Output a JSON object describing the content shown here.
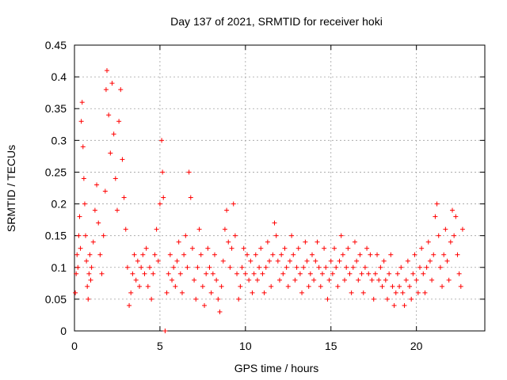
{
  "chart_data": {
    "type": "scatter",
    "title": "Day 137 of 2021, SRMTID for receiver hoki",
    "xlabel": "GPS time / hours",
    "ylabel": "SRMTID / TECUs",
    "xlim": [
      0,
      24
    ],
    "ylim": [
      0,
      0.45
    ],
    "xticks": [
      0,
      5,
      10,
      15,
      20
    ],
    "xtick_labels": [
      "0",
      "5",
      "10",
      "15",
      "20"
    ],
    "yticks": [
      0,
      0.05,
      0.1,
      0.15,
      0.2,
      0.25,
      0.3,
      0.35,
      0.4,
      0.45
    ],
    "ytick_labels": [
      "0",
      "0.05",
      "0.1",
      "0.15",
      "0.2",
      "0.25",
      "0.3",
      "0.35",
      "0.4",
      "0.45"
    ],
    "grid": true,
    "marker": "+",
    "color": "#ff0000",
    "series": [
      {
        "name": "SRMTID",
        "points": [
          [
            0.05,
            0.06
          ],
          [
            0.1,
            0.09
          ],
          [
            0.15,
            0.12
          ],
          [
            0.2,
            0.1
          ],
          [
            0.25,
            0.15
          ],
          [
            0.3,
            0.18
          ],
          [
            0.35,
            0.13
          ],
          [
            0.4,
            0.33
          ],
          [
            0.45,
            0.36
          ],
          [
            0.5,
            0.29
          ],
          [
            0.55,
            0.24
          ],
          [
            0.6,
            0.2
          ],
          [
            0.65,
            0.15
          ],
          [
            0.7,
            0.11
          ],
          [
            0.75,
            0.07
          ],
          [
            0.8,
            0.05
          ],
          [
            0.85,
            0.09
          ],
          [
            0.9,
            0.12
          ],
          [
            0.95,
            0.08
          ],
          [
            1.0,
            0.1
          ],
          [
            1.1,
            0.14
          ],
          [
            1.2,
            0.19
          ],
          [
            1.3,
            0.23
          ],
          [
            1.4,
            0.17
          ],
          [
            1.5,
            0.12
          ],
          [
            1.6,
            0.09
          ],
          [
            1.7,
            0.15
          ],
          [
            1.8,
            0.22
          ],
          [
            1.85,
            0.38
          ],
          [
            1.9,
            0.41
          ],
          [
            2.0,
            0.34
          ],
          [
            2.1,
            0.28
          ],
          [
            2.2,
            0.39
          ],
          [
            2.3,
            0.31
          ],
          [
            2.4,
            0.24
          ],
          [
            2.5,
            0.19
          ],
          [
            2.6,
            0.33
          ],
          [
            2.7,
            0.38
          ],
          [
            2.8,
            0.27
          ],
          [
            2.9,
            0.21
          ],
          [
            3.0,
            0.16
          ],
          [
            3.1,
            0.1
          ],
          [
            3.2,
            0.04
          ],
          [
            3.3,
            0.06
          ],
          [
            3.4,
            0.09
          ],
          [
            3.5,
            0.12
          ],
          [
            3.6,
            0.08
          ],
          [
            3.7,
            0.11
          ],
          [
            3.8,
            0.07
          ],
          [
            3.9,
            0.1
          ],
          [
            4.0,
            0.12
          ],
          [
            4.1,
            0.09
          ],
          [
            4.2,
            0.13
          ],
          [
            4.3,
            0.07
          ],
          [
            4.4,
            0.1
          ],
          [
            4.5,
            0.05
          ],
          [
            4.6,
            0.09
          ],
          [
            4.7,
            0.12
          ],
          [
            4.8,
            0.16
          ],
          [
            4.9,
            0.11
          ],
          [
            5.0,
            0.2
          ],
          [
            5.1,
            0.3
          ],
          [
            5.15,
            0.25
          ],
          [
            5.2,
            0.21
          ],
          [
            5.3,
            0.0
          ],
          [
            5.4,
            0.06
          ],
          [
            5.5,
            0.09
          ],
          [
            5.6,
            0.12
          ],
          [
            5.7,
            0.08
          ],
          [
            5.8,
            0.1
          ],
          [
            5.9,
            0.07
          ],
          [
            6.0,
            0.11
          ],
          [
            6.1,
            0.14
          ],
          [
            6.2,
            0.09
          ],
          [
            6.3,
            0.06
          ],
          [
            6.4,
            0.12
          ],
          [
            6.5,
            0.15
          ],
          [
            6.6,
            0.1
          ],
          [
            6.7,
            0.25
          ],
          [
            6.8,
            0.21
          ],
          [
            6.9,
            0.13
          ],
          [
            7.0,
            0.08
          ],
          [
            7.1,
            0.05
          ],
          [
            7.2,
            0.1
          ],
          [
            7.3,
            0.16
          ],
          [
            7.4,
            0.12
          ],
          [
            7.5,
            0.07
          ],
          [
            7.6,
            0.04
          ],
          [
            7.7,
            0.09
          ],
          [
            7.8,
            0.13
          ],
          [
            7.9,
            0.1
          ],
          [
            8.0,
            0.06
          ],
          [
            8.1,
            0.09
          ],
          [
            8.2,
            0.12
          ],
          [
            8.3,
            0.08
          ],
          [
            8.4,
            0.05
          ],
          [
            8.5,
            0.03
          ],
          [
            8.6,
            0.07
          ],
          [
            8.7,
            0.11
          ],
          [
            8.8,
            0.16
          ],
          [
            8.9,
            0.19
          ],
          [
            9.0,
            0.14
          ],
          [
            9.1,
            0.1
          ],
          [
            9.2,
            0.13
          ],
          [
            9.3,
            0.2
          ],
          [
            9.4,
            0.15
          ],
          [
            9.5,
            0.09
          ],
          [
            9.6,
            0.05
          ],
          [
            9.7,
            0.07
          ],
          [
            9.8,
            0.1
          ],
          [
            9.9,
            0.13
          ],
          [
            10.0,
            0.09
          ],
          [
            10.1,
            0.12
          ],
          [
            10.2,
            0.08
          ],
          [
            10.3,
            0.11
          ],
          [
            10.4,
            0.06
          ],
          [
            10.5,
            0.09
          ],
          [
            10.6,
            0.12
          ],
          [
            10.7,
            0.08
          ],
          [
            10.8,
            0.1
          ],
          [
            10.9,
            0.13
          ],
          [
            11.0,
            0.09
          ],
          [
            11.1,
            0.06
          ],
          [
            11.2,
            0.1
          ],
          [
            11.3,
            0.14
          ],
          [
            11.4,
            0.11
          ],
          [
            11.5,
            0.07
          ],
          [
            11.6,
            0.12
          ],
          [
            11.7,
            0.17
          ],
          [
            11.8,
            0.15
          ],
          [
            11.9,
            0.11
          ],
          [
            12.0,
            0.08
          ],
          [
            12.1,
            0.12
          ],
          [
            12.2,
            0.09
          ],
          [
            12.3,
            0.13
          ],
          [
            12.4,
            0.1
          ],
          [
            12.5,
            0.07
          ],
          [
            12.6,
            0.11
          ],
          [
            12.7,
            0.15
          ],
          [
            12.8,
            0.12
          ],
          [
            12.9,
            0.08
          ],
          [
            13.0,
            0.1
          ],
          [
            13.1,
            0.13
          ],
          [
            13.2,
            0.09
          ],
          [
            13.3,
            0.06
          ],
          [
            13.4,
            0.1
          ],
          [
            13.5,
            0.14
          ],
          [
            13.6,
            0.11
          ],
          [
            13.7,
            0.07
          ],
          [
            13.8,
            0.09
          ],
          [
            13.9,
            0.12
          ],
          [
            14.0,
            0.08
          ],
          [
            14.1,
            0.11
          ],
          [
            14.2,
            0.14
          ],
          [
            14.3,
            0.1
          ],
          [
            14.4,
            0.07
          ],
          [
            14.5,
            0.09
          ],
          [
            14.6,
            0.13
          ],
          [
            14.7,
            0.1
          ],
          [
            14.8,
            0.05
          ],
          [
            14.9,
            0.08
          ],
          [
            15.0,
            0.11
          ],
          [
            15.1,
            0.09
          ],
          [
            15.2,
            0.13
          ],
          [
            15.3,
            0.1
          ],
          [
            15.4,
            0.07
          ],
          [
            15.5,
            0.11
          ],
          [
            15.6,
            0.15
          ],
          [
            15.7,
            0.12
          ],
          [
            15.8,
            0.08
          ],
          [
            15.9,
            0.1
          ],
          [
            16.0,
            0.13
          ],
          [
            16.1,
            0.09
          ],
          [
            16.2,
            0.06
          ],
          [
            16.3,
            0.1
          ],
          [
            16.4,
            0.14
          ],
          [
            16.5,
            0.11
          ],
          [
            16.6,
            0.08
          ],
          [
            16.7,
            0.12
          ],
          [
            16.8,
            0.09
          ],
          [
            16.9,
            0.06
          ],
          [
            17.0,
            0.1
          ],
          [
            17.1,
            0.13
          ],
          [
            17.2,
            0.09
          ],
          [
            17.3,
            0.12
          ],
          [
            17.4,
            0.08
          ],
          [
            17.5,
            0.05
          ],
          [
            17.6,
            0.09
          ],
          [
            17.7,
            0.12
          ],
          [
            17.8,
            0.08
          ],
          [
            17.9,
            0.1
          ],
          [
            18.0,
            0.07
          ],
          [
            18.1,
            0.11
          ],
          [
            18.2,
            0.08
          ],
          [
            18.3,
            0.05
          ],
          [
            18.4,
            0.09
          ],
          [
            18.5,
            0.12
          ],
          [
            18.6,
            0.07
          ],
          [
            18.7,
            0.04
          ],
          [
            18.8,
            0.06
          ],
          [
            18.9,
            0.09
          ],
          [
            19.0,
            0.07
          ],
          [
            19.1,
            0.1
          ],
          [
            19.2,
            0.06
          ],
          [
            19.3,
            0.04
          ],
          [
            19.4,
            0.08
          ],
          [
            19.5,
            0.11
          ],
          [
            19.6,
            0.07
          ],
          [
            19.7,
            0.05
          ],
          [
            19.8,
            0.09
          ],
          [
            19.9,
            0.12
          ],
          [
            20.0,
            0.08
          ],
          [
            20.1,
            0.06
          ],
          [
            20.2,
            0.1
          ],
          [
            20.3,
            0.13
          ],
          [
            20.4,
            0.09
          ],
          [
            20.5,
            0.06
          ],
          [
            20.6,
            0.1
          ],
          [
            20.7,
            0.14
          ],
          [
            20.8,
            0.11
          ],
          [
            20.9,
            0.08
          ],
          [
            21.0,
            0.12
          ],
          [
            21.1,
            0.18
          ],
          [
            21.2,
            0.2
          ],
          [
            21.3,
            0.15
          ],
          [
            21.4,
            0.1
          ],
          [
            21.5,
            0.07
          ],
          [
            21.6,
            0.12
          ],
          [
            21.7,
            0.16
          ],
          [
            21.8,
            0.11
          ],
          [
            21.9,
            0.08
          ],
          [
            22.0,
            0.14
          ],
          [
            22.1,
            0.19
          ],
          [
            22.2,
            0.15
          ],
          [
            22.3,
            0.18
          ],
          [
            22.4,
            0.12
          ],
          [
            22.5,
            0.09
          ],
          [
            22.6,
            0.07
          ],
          [
            22.7,
            0.16
          ]
        ]
      }
    ]
  }
}
